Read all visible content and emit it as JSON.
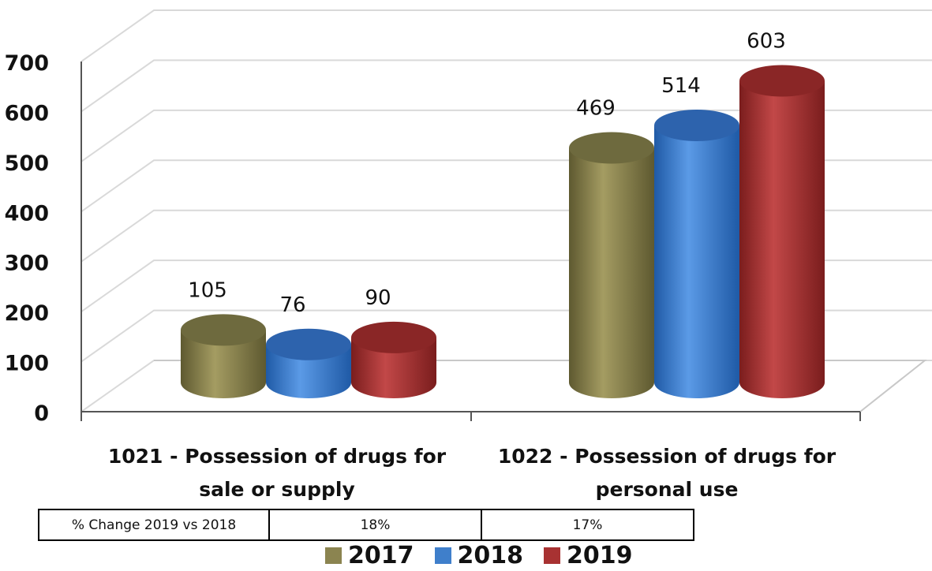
{
  "chart_data": {
    "type": "bar",
    "title": "",
    "xlabel": "",
    "ylabel": "",
    "ylim": [
      0,
      700
    ],
    "yticks": [
      0,
      100,
      200,
      300,
      400,
      500,
      600,
      700
    ],
    "categories": [
      "1021 - Possession of drugs for\nsale or supply",
      "1022 - Possession of drugs for\npersonal use"
    ],
    "series": [
      {
        "name": "2017",
        "values": [
          105,
          469
        ],
        "color": "#8B8450"
      },
      {
        "name": "2018",
        "values": [
          76,
          514
        ],
        "color": "#3F7FCB"
      },
      {
        "name": "2019",
        "values": [
          90,
          603
        ],
        "color": "#A83232"
      }
    ],
    "grid": true,
    "legend_position": "bottom",
    "bar_shape": "3d-cylinder"
  },
  "table": {
    "row_label": "% Change 2019 vs 2018",
    "values": [
      "18%",
      "17%"
    ]
  }
}
